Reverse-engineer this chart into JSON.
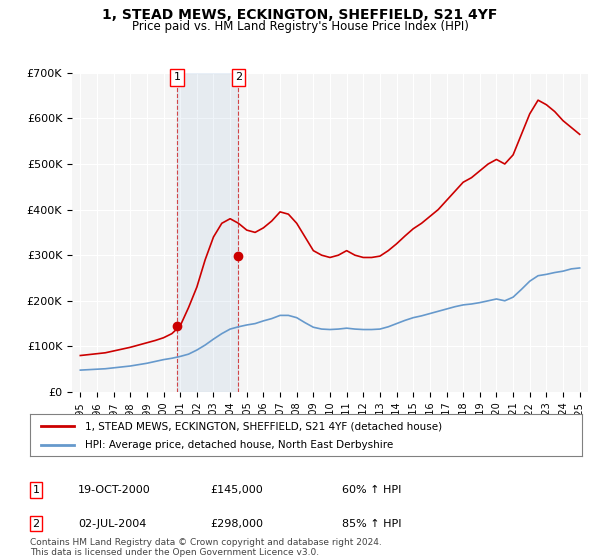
{
  "title": "1, STEAD MEWS, ECKINGTON, SHEFFIELD, S21 4YF",
  "subtitle": "Price paid vs. HM Land Registry's House Price Index (HPI)",
  "legend_line1": "1, STEAD MEWS, ECKINGTON, SHEFFIELD, S21 4YF (detached house)",
  "legend_line2": "HPI: Average price, detached house, North East Derbyshire",
  "footer": "Contains HM Land Registry data © Crown copyright and database right 2024.\nThis data is licensed under the Open Government Licence v3.0.",
  "sale1_label": "1",
  "sale1_date": "19-OCT-2000",
  "sale1_price": "£145,000",
  "sale1_hpi": "60% ↑ HPI",
  "sale1_year": 2000.8,
  "sale2_label": "2",
  "sale2_date": "02-JUL-2004",
  "sale2_price": "£298,000",
  "sale2_hpi": "85% ↑ HPI",
  "sale2_year": 2004.5,
  "red_color": "#cc0000",
  "blue_color": "#6699cc",
  "marker_color": "#cc0000",
  "vline_color": "#cc0000",
  "bg_color": "#f5f5f5",
  "ylim": [
    0,
    700000
  ],
  "xlim": [
    1994.5,
    2025.5
  ],
  "yticks": [
    0,
    100000,
    200000,
    300000,
    400000,
    500000,
    600000,
    700000
  ],
  "ytick_labels": [
    "£0",
    "£100K",
    "£200K",
    "£300K",
    "£400K",
    "£500K",
    "£600K",
    "£700K"
  ],
  "xticks": [
    1995,
    1996,
    1997,
    1998,
    1999,
    2000,
    2001,
    2002,
    2003,
    2004,
    2005,
    2006,
    2007,
    2008,
    2009,
    2010,
    2011,
    2012,
    2013,
    2014,
    2015,
    2016,
    2017,
    2018,
    2019,
    2020,
    2021,
    2022,
    2023,
    2024,
    2025
  ],
  "hpi_x": [
    1995.0,
    1995.5,
    1996.0,
    1996.5,
    1997.0,
    1997.5,
    1998.0,
    1998.5,
    1999.0,
    1999.5,
    2000.0,
    2000.5,
    2001.0,
    2001.5,
    2002.0,
    2002.5,
    2003.0,
    2003.5,
    2004.0,
    2004.5,
    2005.0,
    2005.5,
    2006.0,
    2006.5,
    2007.0,
    2007.5,
    2008.0,
    2008.5,
    2009.0,
    2009.5,
    2010.0,
    2010.5,
    2011.0,
    2011.5,
    2012.0,
    2012.5,
    2013.0,
    2013.5,
    2014.0,
    2014.5,
    2015.0,
    2015.5,
    2016.0,
    2016.5,
    2017.0,
    2017.5,
    2018.0,
    2018.5,
    2019.0,
    2019.5,
    2020.0,
    2020.5,
    2021.0,
    2021.5,
    2022.0,
    2022.5,
    2023.0,
    2023.5,
    2024.0,
    2024.5,
    2025.0
  ],
  "hpi_y": [
    48000,
    49000,
    50000,
    51000,
    53000,
    55000,
    57000,
    60000,
    63000,
    67000,
    71000,
    74000,
    78000,
    83000,
    92000,
    103000,
    116000,
    128000,
    138000,
    143000,
    147000,
    150000,
    156000,
    161000,
    168000,
    168000,
    163000,
    152000,
    142000,
    138000,
    137000,
    138000,
    140000,
    138000,
    137000,
    137000,
    138000,
    143000,
    150000,
    157000,
    163000,
    167000,
    172000,
    177000,
    182000,
    187000,
    191000,
    193000,
    196000,
    200000,
    204000,
    200000,
    208000,
    225000,
    243000,
    255000,
    258000,
    262000,
    265000,
    270000,
    272000
  ],
  "price_x": [
    1995.0,
    1995.5,
    1996.0,
    1996.5,
    1997.0,
    1997.5,
    1998.0,
    1998.5,
    1999.0,
    1999.5,
    2000.0,
    2000.5,
    2001.0,
    2001.5,
    2002.0,
    2002.5,
    2003.0,
    2003.5,
    2004.0,
    2004.5,
    2005.0,
    2005.5,
    2006.0,
    2006.5,
    2007.0,
    2007.5,
    2008.0,
    2008.5,
    2009.0,
    2009.5,
    2010.0,
    2010.5,
    2011.0,
    2011.5,
    2012.0,
    2012.5,
    2013.0,
    2013.5,
    2014.0,
    2014.5,
    2015.0,
    2015.5,
    2016.0,
    2016.5,
    2017.0,
    2017.5,
    2018.0,
    2018.5,
    2019.0,
    2019.5,
    2020.0,
    2020.5,
    2021.0,
    2021.5,
    2022.0,
    2022.5,
    2023.0,
    2023.5,
    2024.0,
    2024.5,
    2025.0
  ],
  "price_y": [
    80000,
    82000,
    84000,
    86000,
    90000,
    94000,
    98000,
    103000,
    108000,
    113000,
    119000,
    128000,
    145000,
    185000,
    230000,
    290000,
    340000,
    370000,
    380000,
    370000,
    355000,
    350000,
    360000,
    375000,
    395000,
    390000,
    370000,
    340000,
    310000,
    300000,
    295000,
    300000,
    310000,
    300000,
    295000,
    295000,
    298000,
    310000,
    325000,
    342000,
    358000,
    370000,
    385000,
    400000,
    420000,
    440000,
    460000,
    470000,
    485000,
    500000,
    510000,
    500000,
    520000,
    565000,
    610000,
    640000,
    630000,
    615000,
    595000,
    580000,
    565000
  ]
}
